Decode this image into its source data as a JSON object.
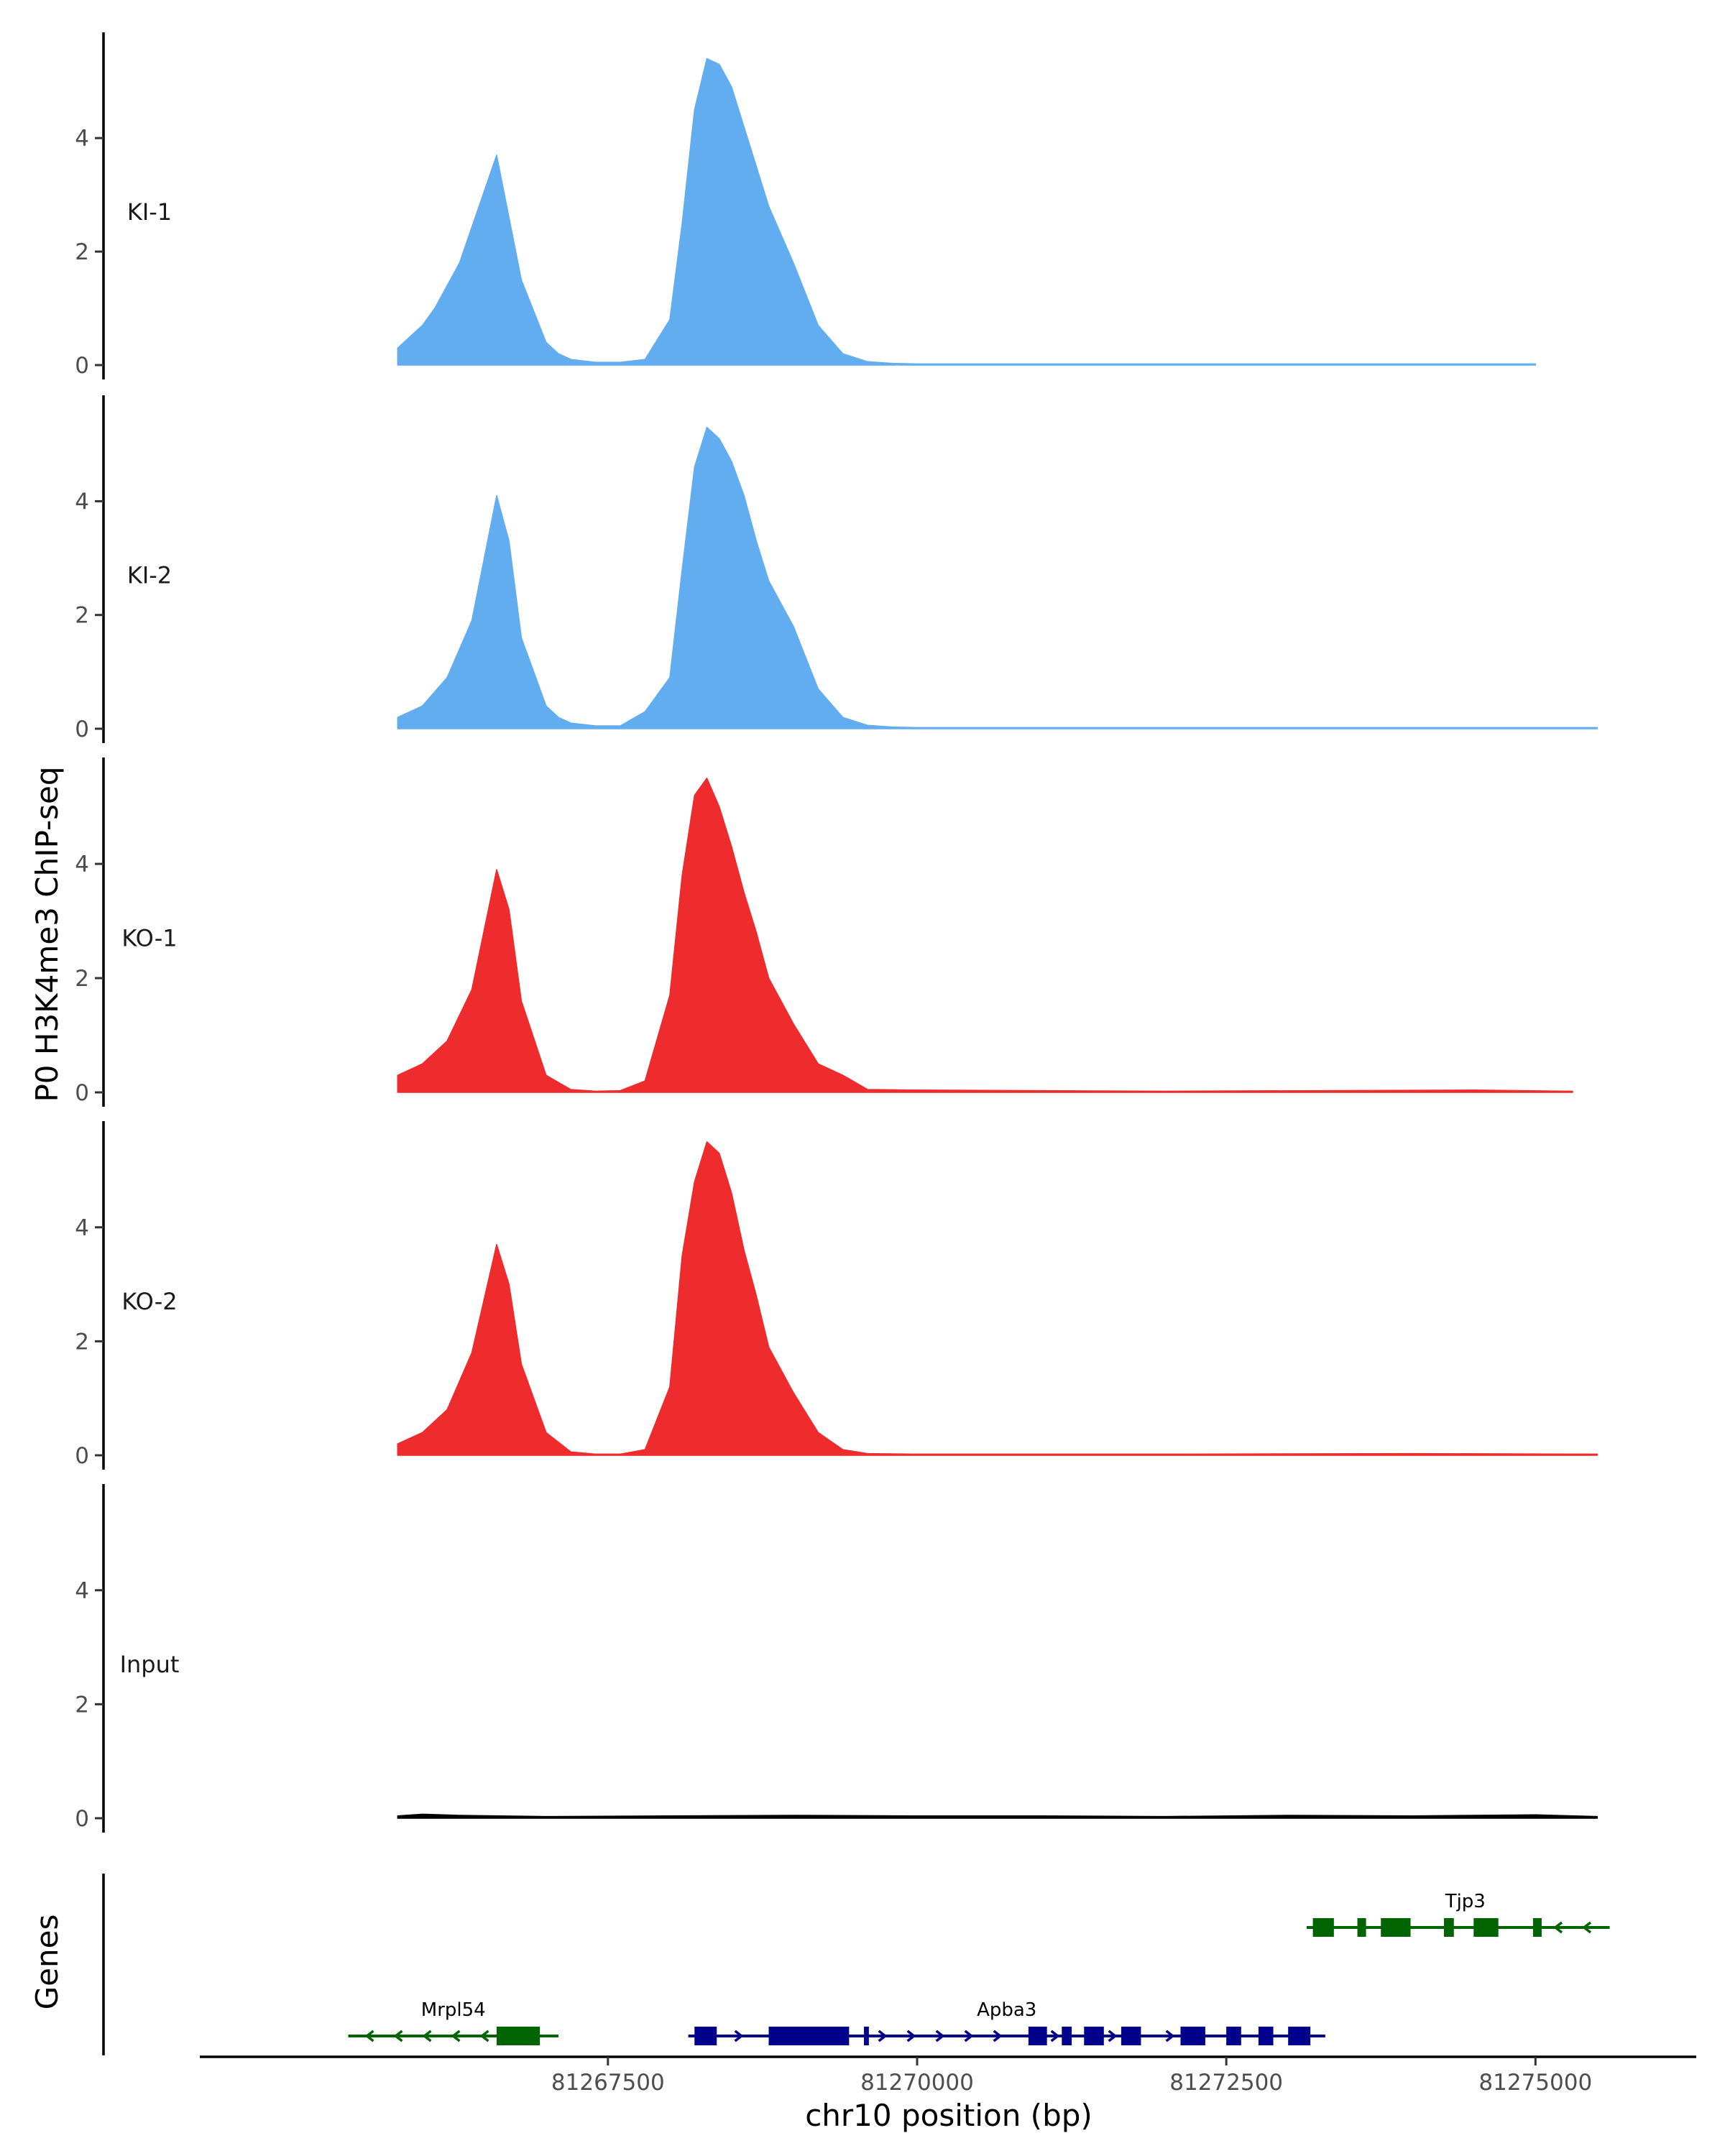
{
  "chart_data": {
    "type": "area",
    "ylabel": "P0 H3K4me3 ChIP-seq",
    "xlabel": "chr10 position (bp)",
    "genes_label": "Genes",
    "xlim": [
      81264200,
      81276300
    ],
    "ylim": [
      0,
      5.8
    ],
    "yticks": [
      "0",
      "2",
      "4"
    ],
    "xticks": [
      {
        "value": 81267500,
        "label": "81267500"
      },
      {
        "value": 81270000,
        "label": "81270000"
      },
      {
        "value": 81272500,
        "label": "81272500"
      },
      {
        "value": 81275000,
        "label": "81275000"
      }
    ],
    "colors": {
      "KI": "#62ADEF",
      "KO": "#EE2B2D",
      "Input": "#000000",
      "gene_plus": "#00008B",
      "gene_minus": "#006400",
      "axis": "#000000"
    },
    "tracks": [
      {
        "name": "KI-1",
        "color": "#62ADEF",
        "x": [
          81265800,
          81266000,
          81266100,
          81266300,
          81266600,
          81266800,
          81267000,
          81267100,
          81267200,
          81267400,
          81267600,
          81267800,
          81268000,
          81268100,
          81268200,
          81268300,
          81268400,
          81268500,
          81268600,
          81268700,
          81268800,
          81269000,
          81269200,
          81269400,
          81269600,
          81269800,
          81270000,
          81275000
        ],
        "y": [
          0.3,
          0.7,
          1.0,
          1.8,
          3.7,
          1.5,
          0.4,
          0.2,
          0.1,
          0.05,
          0.05,
          0.1,
          0.8,
          2.5,
          4.5,
          5.4,
          5.3,
          4.9,
          4.2,
          3.5,
          2.8,
          1.8,
          0.7,
          0.2,
          0.06,
          0.03,
          0.02,
          0.02
        ]
      },
      {
        "name": "KI-2",
        "color": "#62ADEF",
        "x": [
          81265800,
          81266000,
          81266200,
          81266400,
          81266600,
          81266700,
          81266800,
          81267000,
          81267100,
          81267200,
          81267400,
          81267600,
          81267800,
          81268000,
          81268100,
          81268200,
          81268300,
          81268400,
          81268500,
          81268600,
          81268700,
          81268800,
          81269000,
          81269200,
          81269400,
          81269600,
          81269800,
          81270000,
          81275500
        ],
        "y": [
          0.2,
          0.4,
          0.9,
          1.9,
          4.1,
          3.3,
          1.6,
          0.4,
          0.2,
          0.1,
          0.05,
          0.05,
          0.3,
          0.9,
          2.8,
          4.6,
          5.3,
          5.1,
          4.7,
          4.1,
          3.3,
          2.6,
          1.8,
          0.7,
          0.2,
          0.06,
          0.03,
          0.02,
          0.02
        ]
      },
      {
        "name": "KO-1",
        "color": "#EE2B2D",
        "x": [
          81265800,
          81266000,
          81266200,
          81266400,
          81266600,
          81266700,
          81266800,
          81267000,
          81267200,
          81267400,
          81267600,
          81267800,
          81268000,
          81268100,
          81268200,
          81268300,
          81268400,
          81268500,
          81268600,
          81268700,
          81268800,
          81269000,
          81269200,
          81269400,
          81269600,
          81270000,
          81271000,
          81272000,
          81274500,
          81275300
        ],
        "y": [
          0.3,
          0.5,
          0.9,
          1.8,
          3.9,
          3.2,
          1.6,
          0.3,
          0.05,
          0.02,
          0.03,
          0.2,
          1.7,
          3.8,
          5.2,
          5.5,
          5.0,
          4.3,
          3.5,
          2.8,
          2.0,
          1.2,
          0.5,
          0.3,
          0.05,
          0.04,
          0.03,
          0.02,
          0.04,
          0.02
        ]
      },
      {
        "name": "KO-2",
        "color": "#EE2B2D",
        "x": [
          81265800,
          81266000,
          81266200,
          81266400,
          81266600,
          81266700,
          81266800,
          81267000,
          81267200,
          81267400,
          81267600,
          81267800,
          81268000,
          81268100,
          81268200,
          81268300,
          81268400,
          81268500,
          81268600,
          81268700,
          81268800,
          81269000,
          81269200,
          81269400,
          81269600,
          81270000,
          81272000,
          81274000,
          81275500
        ],
        "y": [
          0.2,
          0.4,
          0.8,
          1.8,
          3.7,
          3.0,
          1.6,
          0.4,
          0.06,
          0.02,
          0.02,
          0.1,
          1.2,
          3.5,
          4.8,
          5.5,
          5.3,
          4.6,
          3.6,
          2.8,
          1.9,
          1.1,
          0.4,
          0.1,
          0.03,
          0.02,
          0.02,
          0.03,
          0.02
        ]
      },
      {
        "name": "Input",
        "color": "#000000",
        "x": [
          81265800,
          81266000,
          81266300,
          81267000,
          81268000,
          81269000,
          81270000,
          81271000,
          81272000,
          81273000,
          81274000,
          81274500,
          81275000,
          81275500
        ],
        "y": [
          0.04,
          0.07,
          0.05,
          0.03,
          0.04,
          0.05,
          0.04,
          0.04,
          0.03,
          0.05,
          0.04,
          0.05,
          0.06,
          0.03
        ]
      }
    ],
    "genes": [
      {
        "name": "Mrpl54",
        "row": 2,
        "strand": "-",
        "color": "#006400",
        "start": 81265400,
        "end": 81267100,
        "exons": [
          [
            81266600,
            81266950
          ]
        ]
      },
      {
        "name": "Apba3",
        "row": 2,
        "strand": "+",
        "color": "#00008B",
        "start": 81268150,
        "end": 81273300,
        "exons": [
          [
            81268200,
            81268380
          ],
          [
            81268800,
            81269450
          ],
          [
            81269570,
            81269610
          ],
          [
            81270900,
            81271050
          ],
          [
            81271170,
            81271250
          ],
          [
            81271350,
            81271510
          ],
          [
            81271650,
            81271810
          ],
          [
            81272130,
            81272330
          ],
          [
            81272500,
            81272620
          ],
          [
            81272760,
            81272880
          ],
          [
            81273000,
            81273180
          ]
        ]
      },
      {
        "name": "Tjp3",
        "row": 1,
        "strand": "-",
        "color": "#006400",
        "start": 81273150,
        "end": 81275600,
        "exons": [
          [
            81273200,
            81273370
          ],
          [
            81273560,
            81273630
          ],
          [
            81273750,
            81273990
          ],
          [
            81274260,
            81274340
          ],
          [
            81274500,
            81274700
          ],
          [
            81274980,
            81275050
          ]
        ]
      }
    ]
  }
}
